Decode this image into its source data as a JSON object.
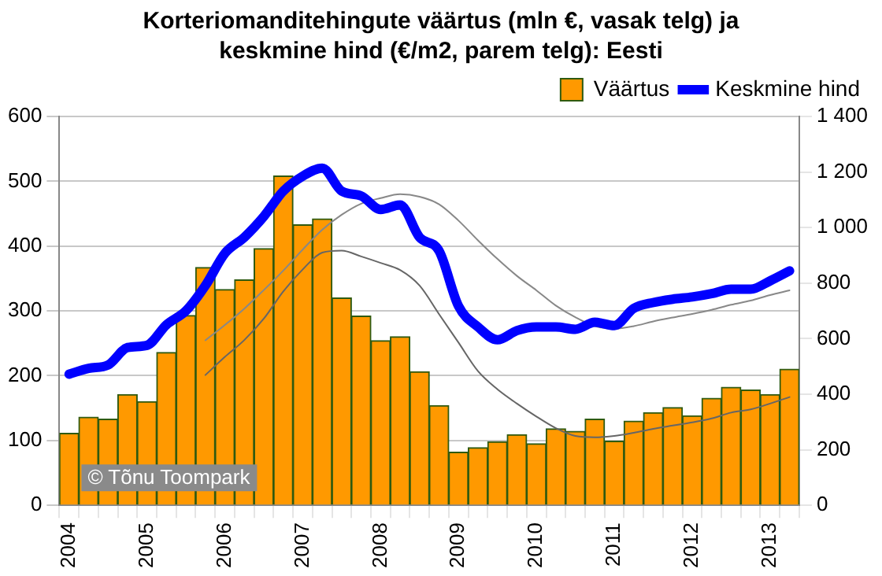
{
  "chart_data": {
    "type": "bar",
    "title": "Korteriomanditehingute väärtus (mln €, vasak telg) ja keskmine hind (€/m2, parem telg): Eesti",
    "categories": [
      "2004",
      null,
      null,
      null,
      "2005",
      null,
      null,
      null,
      "2006",
      null,
      null,
      null,
      "2007",
      null,
      null,
      null,
      "2008",
      null,
      null,
      null,
      "2009",
      null,
      null,
      null,
      "2010",
      null,
      null,
      null,
      "2011",
      null,
      null,
      null,
      "2012",
      null,
      null,
      null,
      "2013",
      null
    ],
    "series": [
      {
        "name": "Väärtus",
        "color": "#ff9900",
        "values": [
          111,
          136,
          133,
          171,
          160,
          236,
          293,
          367,
          333,
          348,
          396,
          508,
          433,
          442,
          320,
          292,
          254,
          260,
          206,
          154,
          82,
          89,
          98,
          109,
          95,
          118,
          114,
          133,
          99,
          130,
          143,
          151,
          138,
          165,
          182,
          178,
          171,
          210
        ]
      },
      {
        "name": "Keskmine hind",
        "type": "line",
        "axis": "y2",
        "color": "#0000ff",
        "values": [
          472,
          493,
          505,
          568,
          576,
          650,
          700,
          791,
          907,
          965,
          1040,
          1131,
          1185,
          1214,
          1131,
          1114,
          1065,
          1081,
          965,
          916,
          717,
          642,
          596,
          629,
          642,
          642,
          634,
          659,
          647,
          709,
          730,
          742,
          750,
          762,
          778,
          778,
          808,
          844
        ]
      },
      {
        "type": "line",
        "color": "#666666",
        "values": [
          null,
          null,
          null,
          null,
          null,
          null,
          null,
          201,
          229,
          255,
          288,
          330,
          364,
          390,
          393,
          384,
          374,
          363,
          339,
          295,
          251,
          207,
          179,
          157,
          137,
          119,
          107,
          105,
          107,
          112,
          118,
          123,
          128,
          134,
          143,
          148,
          157,
          167
        ]
      },
      {
        "type": "line",
        "axis": "y2",
        "color": "#888888",
        "values": [
          null,
          null,
          null,
          null,
          null,
          null,
          null,
          594,
          649,
          708,
          775,
          845,
          921,
          992,
          1046,
          1086,
          1106,
          1120,
          1111,
          1084,
          1025,
          954,
          887,
          826,
          774,
          719,
          677,
          645,
          636,
          645,
          662,
          676,
          689,
          704,
          722,
          737,
          757,
          774
        ]
      }
    ],
    "ylim": [
      0,
      600
    ],
    "yticks": [
      0,
      100,
      200,
      300,
      400,
      500,
      600
    ],
    "y2lim": [
      0,
      1400
    ],
    "y2ticks": [
      0,
      {
        "value": 200,
        "label": "200"
      },
      {
        "value": 400,
        "label": "400"
      },
      {
        "value": 600,
        "label": "600"
      },
      {
        "value": 800,
        "label": "800"
      },
      {
        "value": 1000,
        "label": "1 000"
      },
      {
        "value": 1200,
        "label": "1 200"
      },
      {
        "value": 1400,
        "label": "1 400"
      }
    ],
    "grid": "y",
    "legend": "top right",
    "marker": "none",
    "line_style": "solid",
    "annotations": [
      "© Tõnu Toompark"
    ]
  }
}
